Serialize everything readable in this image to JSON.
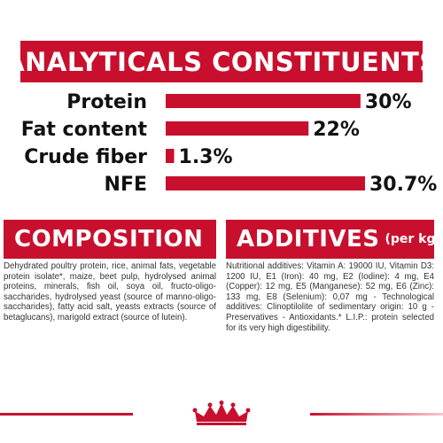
{
  "header": {
    "title": "ANALYTICALS CONSTITUENTS"
  },
  "chart_data": {
    "type": "bar",
    "orientation": "horizontal",
    "categories": [
      "Protein",
      "Fat content",
      "Crude fiber",
      "NFE"
    ],
    "values": [
      30,
      22,
      1.3,
      30.7
    ],
    "value_labels": [
      "30%",
      "22%",
      "1.3%",
      "30.7%"
    ],
    "xlim": [
      0,
      30.7
    ],
    "grid": false,
    "legend": "none",
    "bar_color": "#c8102e"
  },
  "composition": {
    "title": "COMPOSITION",
    "text": "Dehydrated poultry protein, rice, animal fats, vegetable protein isolate*, maize, beet pulp, hydrolysed animal proteins, minerals, fish oil, soya oil, fructo-oligo-saccharides, hydrolysed yeast (source of manno-oligo-saccharides), fatty acid salt, yeasts extracts (source of betaglucans), marigold extract (source of lutein)."
  },
  "additives": {
    "title": "ADDITIVES",
    "subtitle": "(per kg)",
    "text": "Nutritional additives: Vitamin A: 19000 IU, Vitamin D3: 1200 IU, E1 (Iron): 40 mg, E2 (Iodine): 4 mg, E4 (Copper): 12 mg, E5 (Manganese): 52 mg, E6 (Zinc): 133 mg, E8 (Selenium): 0,07 mg - Technological additives: Clinoptilolite of sedimentary origin: 10 g - Preservatives - Antioxidants.* L.I.P.: protein selected for its very high digestibility."
  },
  "footer": {
    "logo": "crown-logo"
  },
  "colors": {
    "brand_red": "#c8102e",
    "text": "#111111"
  }
}
